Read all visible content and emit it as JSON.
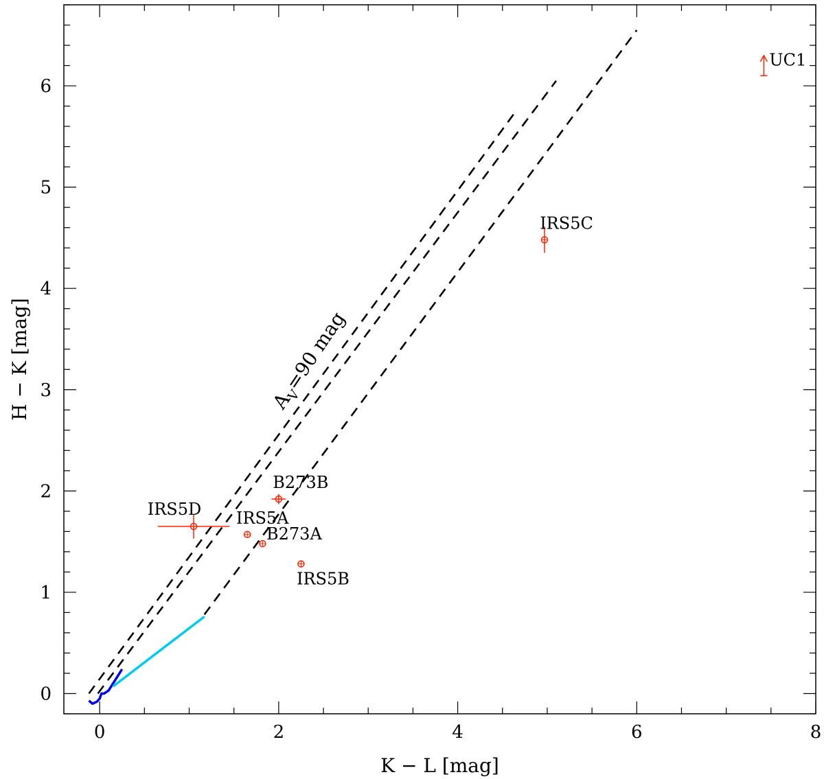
{
  "chart_data": {
    "type": "scatter",
    "xlabel": "K − L [mag]",
    "ylabel": "H − K [mag]",
    "xlim": [
      -0.4,
      8.0
    ],
    "ylim": [
      -0.2,
      6.8
    ],
    "x_ticks": [
      "0",
      "2",
      "4",
      "6",
      "8"
    ],
    "y_ticks": [
      "0",
      "1",
      "2",
      "3",
      "4",
      "5",
      "6"
    ],
    "extinction_label": {
      "prefix": "A",
      "subscript": "V",
      "suffix": "=90 mag"
    },
    "reddening_lines": [
      {
        "x": [
          -0.12,
          4.65
        ],
        "y": [
          0.0,
          5.75
        ]
      },
      {
        "x": [
          -0.02,
          5.1
        ],
        "y": [
          0.0,
          6.05
        ]
      },
      {
        "x": [
          1.17,
          6.0
        ],
        "y": [
          0.78,
          6.55
        ]
      }
    ],
    "intrinsic_curves": [
      {
        "name": "",
        "color": "#0000ee",
        "x": [
          -0.12,
          -0.08,
          -0.03,
          0.0,
          0.02,
          0.05,
          0.1,
          0.15,
          0.2,
          0.25
        ],
        "y": [
          -0.07,
          -0.1,
          -0.08,
          -0.05,
          0.0,
          0.0,
          0.03,
          0.1,
          0.17,
          0.24
        ]
      },
      {
        "name": "",
        "color": "#00ccee",
        "x": [
          0.15,
          1.17
        ],
        "y": [
          0.07,
          0.76
        ]
      }
    ],
    "sources": [
      {
        "name": "IRS5D",
        "x": 1.05,
        "y": 1.65,
        "xerr": 0.4,
        "yerr": 0.12
      },
      {
        "name": "IRS5A",
        "x": 1.65,
        "y": 1.57,
        "xerr": 0.0,
        "yerr": 0.0
      },
      {
        "name": "B273A",
        "x": 1.82,
        "y": 1.48,
        "xerr": 0.0,
        "yerr": 0.0
      },
      {
        "name": "B273B",
        "x": 2.0,
        "y": 1.92,
        "xerr": 0.08,
        "yerr": 0.05
      },
      {
        "name": "IRS5B",
        "x": 2.25,
        "y": 1.28,
        "xerr": 0.0,
        "yerr": 0.0
      },
      {
        "name": "IRS5C",
        "x": 4.97,
        "y": 4.48,
        "xerr": 0.0,
        "yerr": 0.13
      },
      {
        "name": "UC1",
        "x": 7.42,
        "y": 6.1,
        "lower_limit": true,
        "arrow_to": 6.3
      }
    ],
    "colors": {
      "points": "#ff2200",
      "lines": "#000000"
    }
  }
}
